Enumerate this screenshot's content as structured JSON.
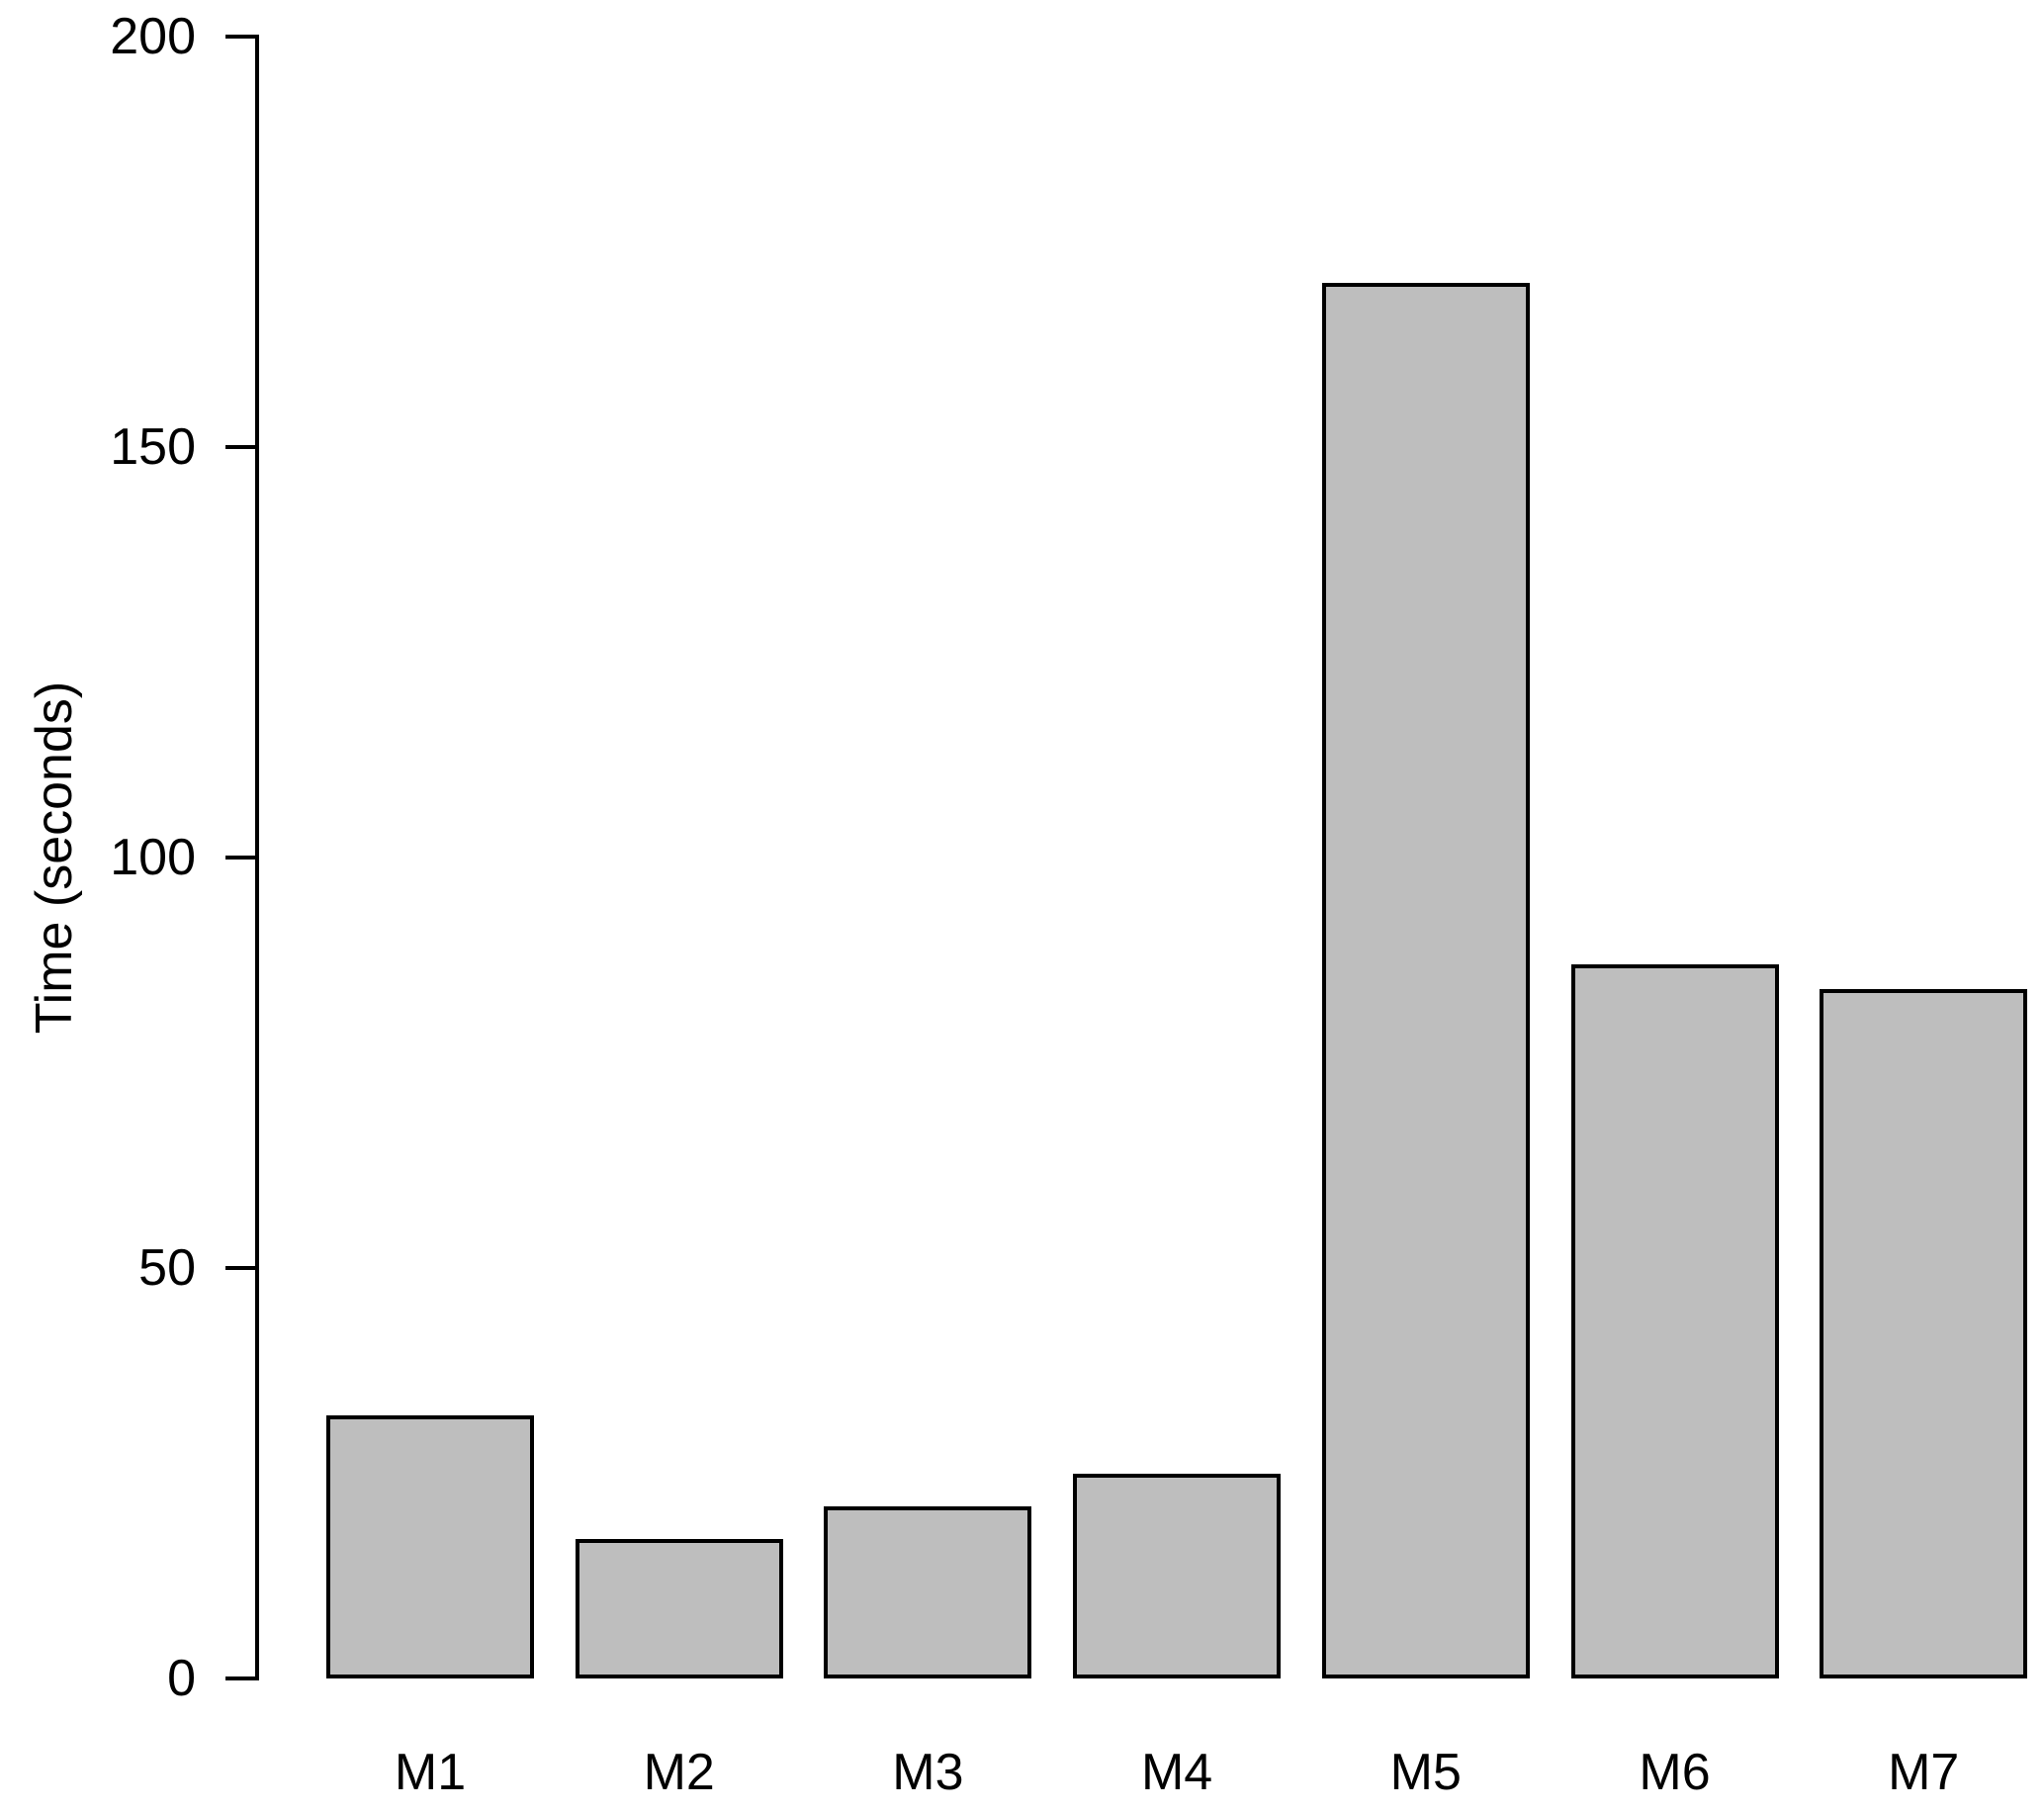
{
  "chart_data": {
    "type": "bar",
    "categories": [
      "M1",
      "M2",
      "M3",
      "M4",
      "M5",
      "M6",
      "M7"
    ],
    "values": [
      32,
      17,
      21,
      25,
      170,
      87,
      84
    ],
    "title": "",
    "xlabel": "",
    "ylabel": "Time (seconds)",
    "ylim": [
      0,
      200
    ],
    "yticks": [
      0,
      50,
      100,
      150,
      200
    ],
    "bar_fill": "#bebebe",
    "bar_border": "#000000",
    "axis_color": "#000000",
    "background": "#ffffff",
    "grid": false,
    "legend_position": "none"
  }
}
